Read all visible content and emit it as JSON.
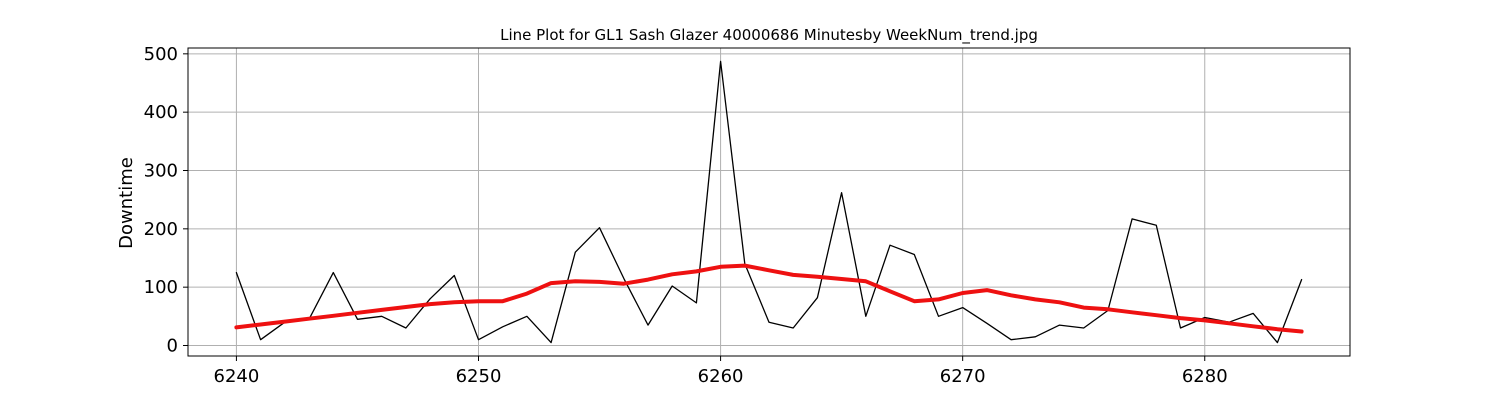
{
  "chart_data": {
    "type": "line",
    "title": "Line Plot for GL1 Sash Glazer 40000686 Minutesby WeekNum_trend.jpg",
    "xlabel": "",
    "ylabel": "Downtime",
    "xlim": [
      6238,
      6286
    ],
    "ylim": [
      -18,
      510
    ],
    "xticks": [
      6240,
      6250,
      6260,
      6270,
      6280
    ],
    "yticks": [
      0,
      100,
      200,
      300,
      400,
      500
    ],
    "grid": true,
    "legend": "none",
    "x": [
      6240,
      6241,
      6242,
      6243,
      6244,
      6245,
      6246,
      6247,
      6248,
      6249,
      6250,
      6251,
      6252,
      6253,
      6254,
      6255,
      6256,
      6257,
      6258,
      6259,
      6260,
      6261,
      6262,
      6263,
      6264,
      6265,
      6266,
      6267,
      6268,
      6269,
      6270,
      6271,
      6272,
      6273,
      6274,
      6275,
      6276,
      6277,
      6278,
      6279,
      6280,
      6281,
      6282,
      6283,
      6284
    ],
    "series": [
      {
        "color": "#000000",
        "values": [
          125,
          10,
          40,
          45,
          125,
          45,
          50,
          30,
          80,
          120,
          10,
          32,
          50,
          5,
          160,
          202,
          115,
          35,
          102,
          73,
          487,
          140,
          40,
          30,
          82,
          262,
          50,
          172,
          156,
          50,
          65,
          38,
          10,
          15,
          35,
          30,
          60,
          217,
          206,
          30,
          48,
          40,
          55,
          5,
          113
        ]
      },
      {
        "color": "#ee1111",
        "values": [
          31,
          36,
          41,
          46,
          51,
          56,
          61,
          66,
          71,
          74,
          76,
          76,
          89,
          107,
          110,
          109,
          106,
          113,
          122,
          127,
          135,
          137,
          129,
          121,
          118,
          114,
          110,
          93,
          76,
          79,
          90,
          95,
          86,
          79,
          74,
          65,
          62,
          57,
          52,
          47,
          43,
          38,
          33,
          28,
          24
        ]
      }
    ]
  }
}
